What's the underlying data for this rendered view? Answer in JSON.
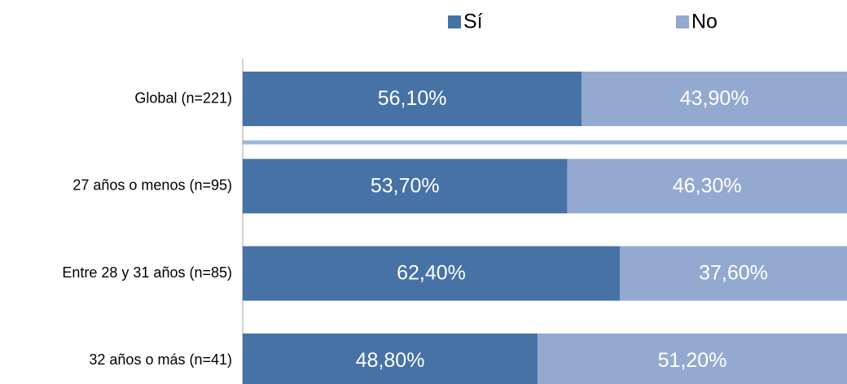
{
  "chart_data": {
    "type": "stacked_barh",
    "categories": [
      "Global (n=221)",
      "27 años o menos (n=95)",
      "Entre 28 y 31 años (n=85)",
      "32 años o más (n=41)"
    ],
    "series": [
      {
        "name": "Sí",
        "color": "#4672a6",
        "values": [
          56.1,
          53.7,
          62.4,
          48.8
        ],
        "value_labels": [
          "56,10%",
          "53,70%",
          "62,40%",
          "48,80%"
        ]
      },
      {
        "name": "No",
        "color": "#94a9d0",
        "values": [
          43.9,
          46.3,
          37.6,
          51.2
        ],
        "value_labels": [
          "43,90%",
          "46,30%",
          "37,60%",
          "51,20%"
        ]
      }
    ],
    "xlim": [
      0,
      100
    ],
    "legend": "top"
  }
}
